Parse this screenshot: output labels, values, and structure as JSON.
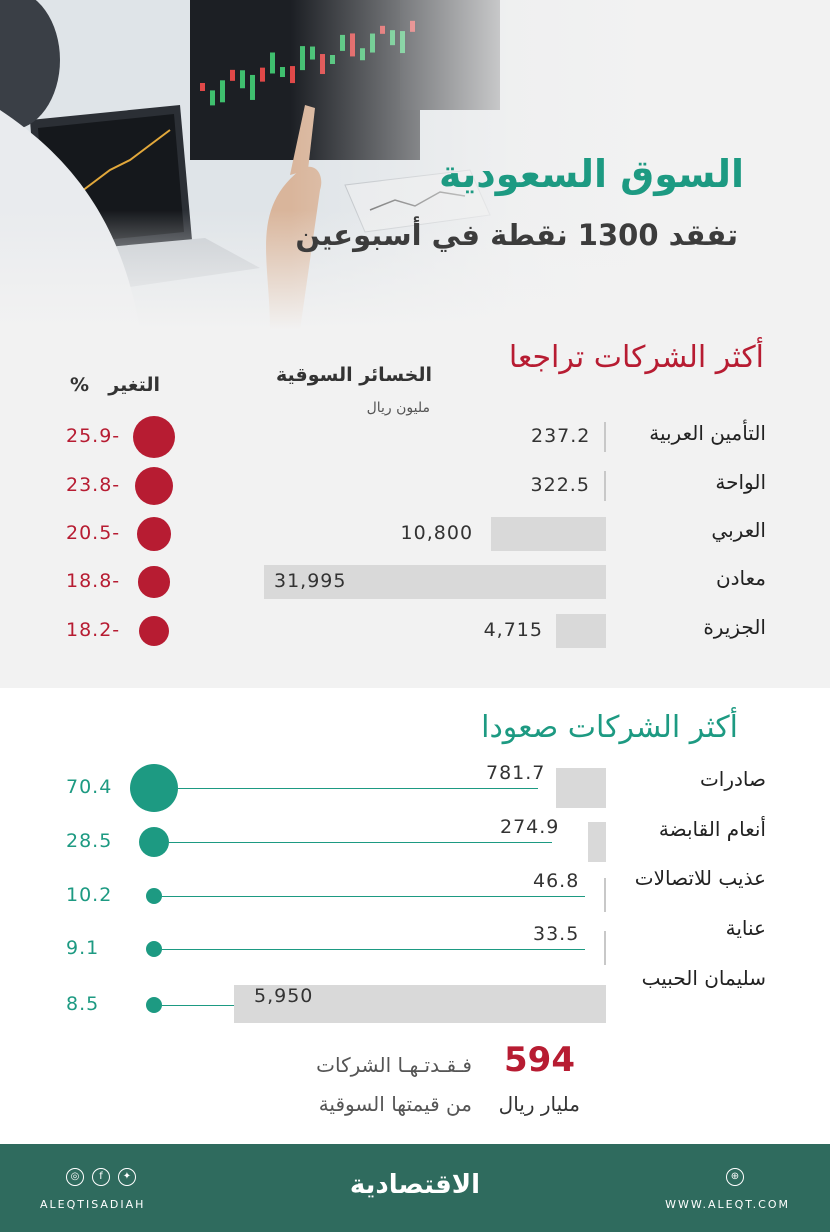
{
  "header": {
    "title": "السوق السعودية",
    "subtitle": "تفقد 1300 نقطة في أسبوعين"
  },
  "decliners": {
    "heading": "أكثر الشركات تراجعا",
    "losses_header": "الخسائر السوقية",
    "losses_unit": "مليون ريال",
    "change_header": "التغير",
    "percent_sign": "%"
  },
  "risers": {
    "heading": "أكثر الشركات صعودا"
  },
  "total": {
    "number": "594",
    "unit": "مليار ريال",
    "line1": "فـقـدتـهـا الشركات",
    "line2": "من قيمتها السوقية"
  },
  "footer": {
    "brand": "الاقتصادية",
    "handle": "ALEQTISADIAH",
    "website": "WWW.ALEQT.COM"
  },
  "colors": {
    "decline": "#b71c32",
    "rise": "#1d9a82",
    "bar": "#d9d9d9",
    "footer": "#2f6b5e"
  },
  "icons": [
    "instagram-icon",
    "facebook-icon",
    "twitter-icon",
    "globe-icon"
  ],
  "chart_data": [
    {
      "type": "bar",
      "categories": [
        "التأمين العربية",
        "الواحة",
        "العربي",
        "معادن",
        "الجزيرة"
      ],
      "series": [
        {
          "values": [
            237.2,
            322.5,
            10800,
            31995,
            4715
          ]
        },
        {
          "values": [
            -25.9,
            -23.8,
            -20.5,
            -18.8,
            -18.2
          ]
        }
      ],
      "value_labels": [
        "237.2",
        "322.5",
        "10,800",
        "31,995",
        "4,715"
      ],
      "change_labels": [
        "25.9-",
        "23.8-",
        "20.5-",
        "18.8-",
        "18.2-"
      ]
    },
    {
      "type": "bar",
      "categories": [
        "صادرات",
        "أنعام القابضة",
        "عذيب للاتصالات",
        "عناية",
        "سليمان الحبيب"
      ],
      "series": [
        {
          "values": [
            781.7,
            274.9,
            46.8,
            33.5,
            5950
          ]
        },
        {
          "values": [
            70.4,
            28.5,
            10.2,
            9.1,
            8.5
          ]
        }
      ],
      "value_labels": [
        "781.7",
        "274.9",
        "46.8",
        "33.5",
        "5,950"
      ],
      "change_labels": [
        "70.4",
        "28.5",
        "10.2",
        "9.1",
        "8.5"
      ]
    }
  ]
}
